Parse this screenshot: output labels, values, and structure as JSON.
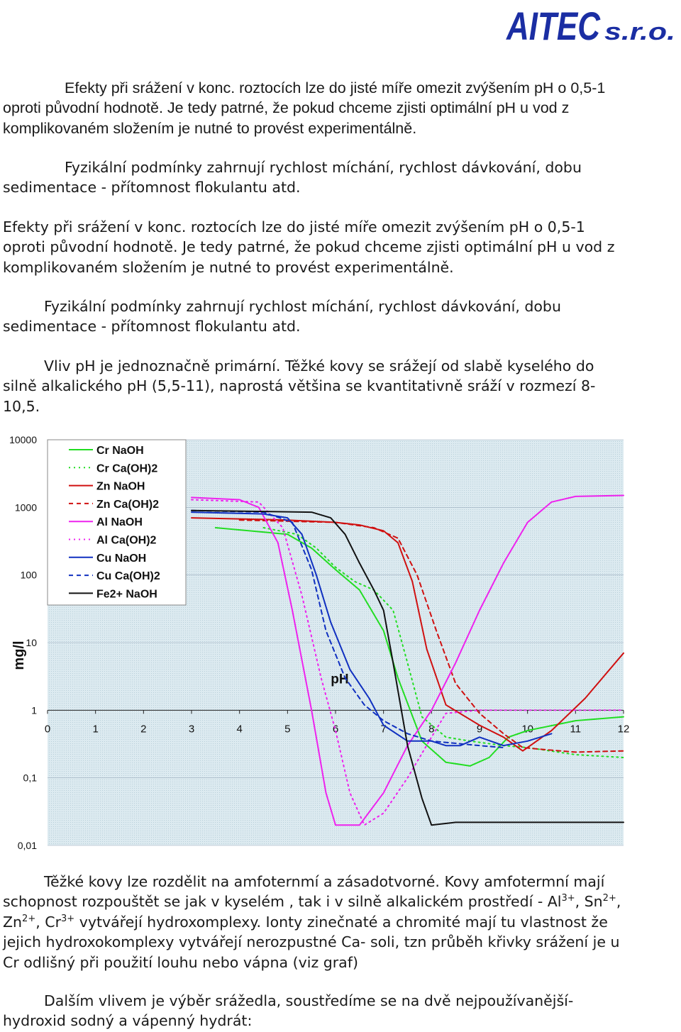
{
  "logo": {
    "brand": "AITEC",
    "suffix": "s.r.o.",
    "color": "#1b2ea3"
  },
  "paragraphs": {
    "p1": "Efekty při srážení v konc. roztocích lze do jisté míře omezit zvýšením pH o 0,5-1 oproti původní  hodnotě.  Je tedy patrné, že pokud chceme zjisti optimální pH u vod z komplikovaném složením je nutné to provést experimentálně.",
    "p2": "Fyzikální podmínky zahrnují rychlost míchání, rychlost dávkování, dobu sedimentace - přítomnost flokulantu atd.",
    "p3": "Efekty při srážení v konc. roztocích lze do jisté míře omezit zvýšením pH o 0,5-1 oproti původní  hodnotě.  Je tedy patrné, že pokud chceme zjisti optimální pH u vod z komplikovaném složením je nutné to provést experimentálně.",
    "p4": "Fyzikální podmínky zahrnují rychlost míchání, rychlost dávkování, dobu sedimentace - přítomnost flokulantu atd.",
    "p5": "Vliv pH je jednoznačně primární.  Těžké kovy se srážejí od slabě kyselého do silně alkalického pH (5,5-11), naprostá většina se kvantitativně sráží v rozmezí 8-10,5.",
    "p6": {
      "a": "Těžké kovy lze rozdělit  na amfoternmí a zásadotvorné. Kovy amfotermní mají schopnost rozpouštět se jak v kyselém , tak i v silně alkalickém prostředí - Al",
      "al_sup": "3+",
      "b": ", Sn",
      "sn_sup": "2+",
      "c": ", Zn",
      "zn_sup": "2+",
      "d": ", Cr",
      "cr_sup": "3+",
      "e": "  vytvářejí hydroxomplexy. Ionty zinečnaté a chromité mají tu vlastnost že jejich hydroxokomplexy vytvářejí nerozpustné Ca- soli, tzn průběh křivky srážení je u Cr odlišný při použití louhu nebo vápna (viz graf)"
    },
    "p7": "Dalším vlivem je výběr srážedla, soustředíme se na dvě nejpoužívanější- hydroxid sodný a vápenný hydrát:"
  },
  "chart_data": {
    "type": "line",
    "xlabel": "pH",
    "ylabel": "mg/l",
    "xlim": [
      0,
      12
    ],
    "ylim": [
      0.01,
      10000
    ],
    "yscale": "log",
    "x_ticks": [
      0,
      1,
      2,
      3,
      4,
      5,
      6,
      7,
      8,
      9,
      10,
      11,
      12
    ],
    "x_tick_labels": [
      "0",
      "1",
      "2",
      "3",
      "4",
      "5",
      "6",
      "7",
      "8",
      "9",
      "10",
      "11",
      "12"
    ],
    "y_ticks": [
      10000,
      1000,
      100,
      10,
      1,
      0.1,
      0.01
    ],
    "y_tick_labels": [
      "10000",
      "1000",
      "100",
      "10",
      "1",
      "0,1",
      "0,01"
    ],
    "grid": true,
    "legend_position": "top-left",
    "series": [
      {
        "name": "Cr NaOH",
        "color": "#22dd22",
        "dash": "solid",
        "points": [
          [
            3.5,
            500
          ],
          [
            5,
            400
          ],
          [
            5.5,
            250
          ],
          [
            6,
            120
          ],
          [
            6.5,
            60
          ],
          [
            7,
            15
          ],
          [
            7.3,
            3
          ],
          [
            7.8,
            0.35
          ],
          [
            8.3,
            0.17
          ],
          [
            8.8,
            0.15
          ],
          [
            9.2,
            0.2
          ],
          [
            9.6,
            0.4
          ],
          [
            10,
            0.5
          ],
          [
            11,
            0.7
          ],
          [
            12,
            0.8
          ]
        ]
      },
      {
        "name": "Cr Ca(OH)2",
        "color": "#22dd22",
        "dash": "dot",
        "points": [
          [
            4.5,
            500
          ],
          [
            5.2,
            400
          ],
          [
            5.6,
            250
          ],
          [
            6,
            130
          ],
          [
            6.4,
            80
          ],
          [
            6.8,
            60
          ],
          [
            7.2,
            30
          ],
          [
            7.5,
            5
          ],
          [
            7.8,
            0.8
          ],
          [
            8.3,
            0.4
          ],
          [
            8.8,
            0.35
          ],
          [
            9.5,
            0.3
          ],
          [
            10,
            0.28
          ],
          [
            11,
            0.22
          ],
          [
            12,
            0.2
          ]
        ]
      },
      {
        "name": "Zn NaOH",
        "color": "#d01010",
        "dash": "solid",
        "points": [
          [
            3,
            700
          ],
          [
            5,
            650
          ],
          [
            6,
            600
          ],
          [
            6.5,
            550
          ],
          [
            7,
            450
          ],
          [
            7.3,
            300
          ],
          [
            7.6,
            80
          ],
          [
            7.9,
            8
          ],
          [
            8.3,
            1.2
          ],
          [
            9,
            0.6
          ],
          [
            9.5,
            0.4
          ],
          [
            9.9,
            0.25
          ],
          [
            10.5,
            0.5
          ],
          [
            11.2,
            1.5
          ],
          [
            12,
            7
          ]
        ]
      },
      {
        "name": "Zn Ca(OH)2",
        "color": "#d01010",
        "dash": "dash",
        "points": [
          [
            4,
            650
          ],
          [
            6,
            600
          ],
          [
            6.8,
            500
          ],
          [
            7.3,
            350
          ],
          [
            7.7,
            100
          ],
          [
            8.1,
            15
          ],
          [
            8.5,
            2.5
          ],
          [
            9,
            0.9
          ],
          [
            9.5,
            0.45
          ],
          [
            9.9,
            0.28
          ],
          [
            10.4,
            0.26
          ],
          [
            11,
            0.24
          ],
          [
            12,
            0.25
          ]
        ]
      },
      {
        "name": "Al NaOH",
        "color": "#ee22ee",
        "dash": "solid",
        "points": [
          [
            3,
            1400
          ],
          [
            4,
            1300
          ],
          [
            4.4,
            1000
          ],
          [
            4.8,
            300
          ],
          [
            5.1,
            30
          ],
          [
            5.5,
            1
          ],
          [
            5.8,
            0.06
          ],
          [
            6,
            0.02
          ],
          [
            6.5,
            0.02
          ],
          [
            7,
            0.06
          ],
          [
            7.5,
            0.3
          ],
          [
            8,
            1
          ],
          [
            8.5,
            5
          ],
          [
            9,
            30
          ],
          [
            9.5,
            150
          ],
          [
            10,
            600
          ],
          [
            10.5,
            1200
          ],
          [
            11,
            1450
          ],
          [
            12,
            1500
          ]
        ]
      },
      {
        "name": "Al Ca(OH)2",
        "color": "#ee22ee",
        "dash": "dot",
        "points": [
          [
            3,
            1300
          ],
          [
            4.4,
            1200
          ],
          [
            4.9,
            500
          ],
          [
            5.3,
            50
          ],
          [
            5.7,
            3
          ],
          [
            6,
            0.5
          ],
          [
            6.3,
            0.06
          ],
          [
            6.6,
            0.02
          ],
          [
            7,
            0.03
          ],
          [
            7.5,
            0.1
          ],
          [
            8,
            0.4
          ],
          [
            8.3,
            0.9
          ],
          [
            9,
            1
          ],
          [
            12,
            1
          ]
        ]
      },
      {
        "name": "Cu NaOH",
        "color": "#1030c0",
        "dash": "solid",
        "points": [
          [
            3,
            850
          ],
          [
            4.5,
            800
          ],
          [
            5,
            700
          ],
          [
            5.3,
            400
          ],
          [
            5.6,
            100
          ],
          [
            5.9,
            20
          ],
          [
            6.3,
            4
          ],
          [
            6.7,
            1.5
          ],
          [
            7,
            0.6
          ],
          [
            7.5,
            0.35
          ],
          [
            8,
            0.35
          ],
          [
            8.3,
            0.3
          ],
          [
            8.6,
            0.3
          ],
          [
            9,
            0.4
          ],
          [
            9.5,
            0.3
          ],
          [
            10,
            0.35
          ],
          [
            10.5,
            0.45
          ]
        ]
      },
      {
        "name": "Cu Ca(OH)2",
        "color": "#1030c0",
        "dash": "dash",
        "points": [
          [
            3,
            900
          ],
          [
            4.5,
            850
          ],
          [
            5.1,
            600
          ],
          [
            5.5,
            120
          ],
          [
            5.8,
            15
          ],
          [
            6.2,
            3
          ],
          [
            6.6,
            1.2
          ],
          [
            7,
            0.7
          ],
          [
            7.5,
            0.45
          ],
          [
            8,
            0.35
          ],
          [
            9,
            0.3
          ],
          [
            9.5,
            0.28
          ]
        ]
      },
      {
        "name": "Fe2+ NaOH",
        "color": "#111111",
        "dash": "solid",
        "points": [
          [
            3,
            900
          ],
          [
            5.5,
            850
          ],
          [
            5.9,
            700
          ],
          [
            6.2,
            400
          ],
          [
            6.5,
            150
          ],
          [
            6.8,
            60
          ],
          [
            7,
            30
          ],
          [
            7.2,
            5
          ],
          [
            7.5,
            0.3
          ],
          [
            7.8,
            0.05
          ],
          [
            8,
            0.02
          ],
          [
            8.5,
            0.022
          ],
          [
            9,
            0.022
          ],
          [
            12,
            0.022
          ]
        ]
      }
    ]
  }
}
